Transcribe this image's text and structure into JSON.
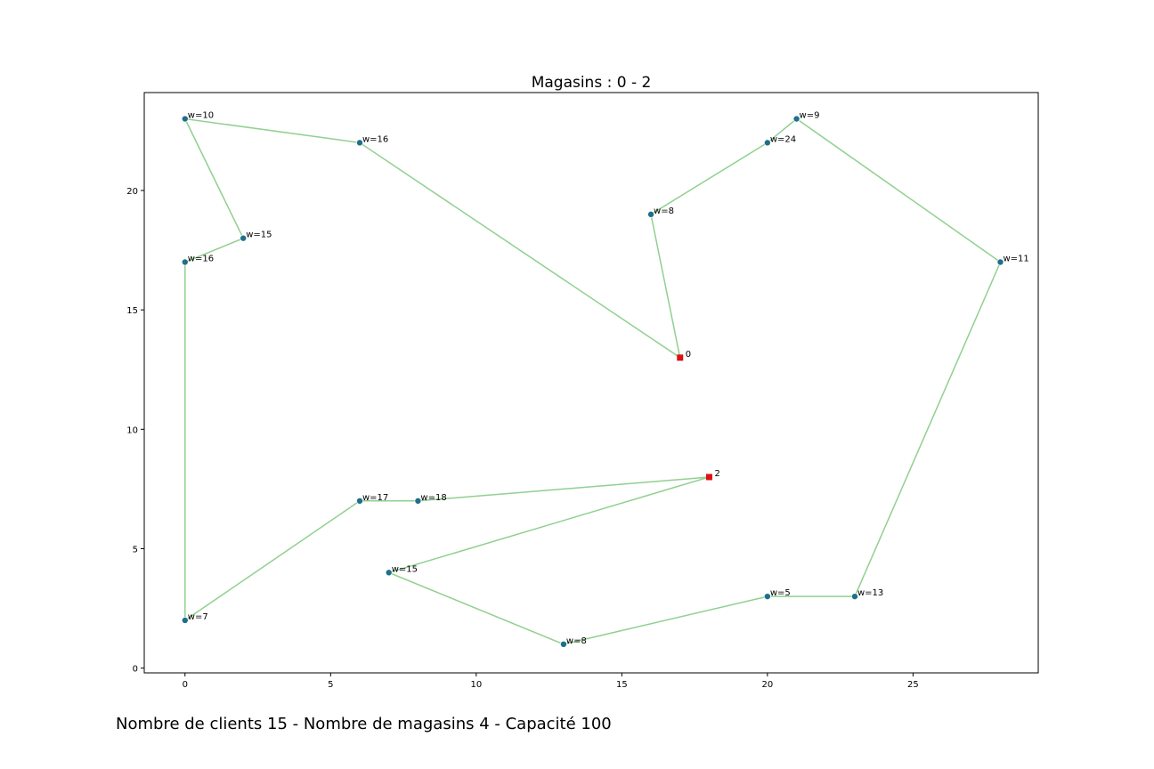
{
  "chart_data": {
    "type": "scatter",
    "title": "Magasins : 0 - 2",
    "xlabel": "",
    "ylabel": "",
    "xlim": [
      -1.4,
      29.3
    ],
    "ylim": [
      -0.2,
      24.1
    ],
    "x_ticks": [
      0,
      5,
      10,
      15,
      20,
      25
    ],
    "y_ticks": [
      0,
      5,
      10,
      15,
      20
    ],
    "grid": false,
    "colors": {
      "route": "#90d090",
      "client": "#1f6f8b",
      "store": "#dd1111"
    },
    "stores": [
      {
        "label": "0",
        "x": 17,
        "y": 13
      },
      {
        "label": "2",
        "x": 18,
        "y": 8
      }
    ],
    "clients": [
      {
        "label": "w=10",
        "x": 0,
        "y": 23
      },
      {
        "label": "w=16",
        "x": 6,
        "y": 22
      },
      {
        "label": "w=15",
        "x": 2,
        "y": 18
      },
      {
        "label": "w=16",
        "x": 0,
        "y": 17
      },
      {
        "label": "w=7",
        "x": 0,
        "y": 2
      },
      {
        "label": "w=17",
        "x": 6,
        "y": 7
      },
      {
        "label": "w=18",
        "x": 8,
        "y": 7
      },
      {
        "label": "w=15",
        "x": 7,
        "y": 4
      },
      {
        "label": "w=8",
        "x": 13,
        "y": 1
      },
      {
        "label": "w=5",
        "x": 20,
        "y": 3
      },
      {
        "label": "w=13",
        "x": 23,
        "y": 3
      },
      {
        "label": "w=11",
        "x": 28,
        "y": 17
      },
      {
        "label": "w=9",
        "x": 21,
        "y": 23
      },
      {
        "label": "w=24",
        "x": 20,
        "y": 22
      },
      {
        "label": "w=8",
        "x": 16,
        "y": 19
      }
    ],
    "route": [
      [
        17,
        13
      ],
      [
        6,
        22
      ],
      [
        0,
        23
      ],
      [
        2,
        18
      ],
      [
        0,
        17
      ],
      [
        0,
        2
      ],
      [
        6,
        7
      ],
      [
        8,
        7
      ],
      [
        18,
        8
      ],
      [
        7,
        4
      ],
      [
        13,
        1
      ],
      [
        20,
        3
      ],
      [
        23,
        3
      ],
      [
        28,
        17
      ],
      [
        21,
        23
      ],
      [
        20,
        22
      ],
      [
        16,
        19
      ],
      [
        17,
        13
      ]
    ]
  },
  "footer": "Nombre de clients 15 - Nombre de magasins 4 - Capacité 100"
}
